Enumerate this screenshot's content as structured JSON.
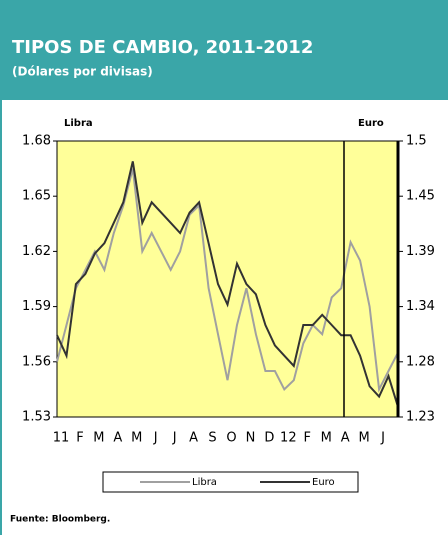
{
  "chart_data": {
    "type": "line",
    "title": "TIPOS DE CAMBIO, 2011-2012",
    "subtitle": "(Dólares por divisas)",
    "ylabel": "Libra",
    "y2label": "Euro",
    "source": "Fuente:  Bloomberg.",
    "categories": [
      "11",
      null,
      "F",
      null,
      "M",
      null,
      "A",
      null,
      "M",
      null,
      "J",
      null,
      "J",
      null,
      "A",
      null,
      "S",
      null,
      "O",
      null,
      "N",
      null,
      "D",
      null,
      "12",
      null,
      "F",
      null,
      "M",
      null,
      "A",
      null,
      "M",
      null,
      "J",
      null,
      null
    ],
    "series": [
      {
        "name": "Libra",
        "color": "#a0a0a0",
        "axis": "y",
        "values": [
          1.56,
          1.58,
          1.6,
          1.61,
          1.62,
          1.61,
          1.63,
          1.645,
          1.665,
          1.62,
          1.63,
          1.62,
          1.61,
          1.62,
          1.64,
          1.645,
          1.6,
          1.575,
          1.55,
          1.58,
          1.6,
          1.575,
          1.555,
          1.555,
          1.545,
          1.55,
          1.57,
          1.58,
          1.575,
          1.595,
          1.6,
          1.625,
          1.615,
          1.59,
          1.545,
          1.555,
          1.565
        ]
      },
      {
        "name": "Euro",
        "color": "#333333",
        "axis": "y2",
        "values": [
          1.31,
          1.29,
          1.36,
          1.37,
          1.39,
          1.4,
          1.42,
          1.44,
          1.48,
          1.42,
          1.44,
          1.43,
          1.42,
          1.41,
          1.43,
          1.44,
          1.4,
          1.36,
          1.34,
          1.38,
          1.36,
          1.35,
          1.32,
          1.3,
          1.29,
          1.28,
          1.32,
          1.32,
          1.33,
          1.32,
          1.31,
          1.31,
          1.29,
          1.26,
          1.25,
          1.27,
          1.24
        ]
      }
    ],
    "ylim": [
      1.53,
      1.68
    ],
    "yticks": [
      1.53,
      1.56,
      1.59,
      1.62,
      1.65,
      1.68
    ],
    "y2lim": [
      1.23,
      1.5
    ],
    "y2ticks": [
      1.23,
      {
        "value": 1.284,
        "label": "1.28"
      },
      {
        "value": 1.338,
        "label": "1.34"
      },
      {
        "value": 1.392,
        "label": "1.39"
      },
      {
        "value": 1.446,
        "label": "1.45"
      },
      1.5
    ],
    "plot_background": "#ffff99"
  }
}
